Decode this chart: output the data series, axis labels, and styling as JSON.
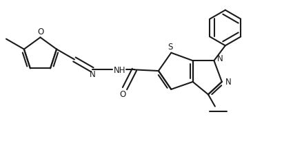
{
  "bg_color": "#ffffff",
  "line_color": "#1a1a1a",
  "line_width": 1.5,
  "font_size": 8.5,
  "figsize": [
    4.25,
    2.24
  ],
  "dpi": 100,
  "xlim": [
    0,
    8.5
  ],
  "ylim": [
    0,
    4.48
  ]
}
